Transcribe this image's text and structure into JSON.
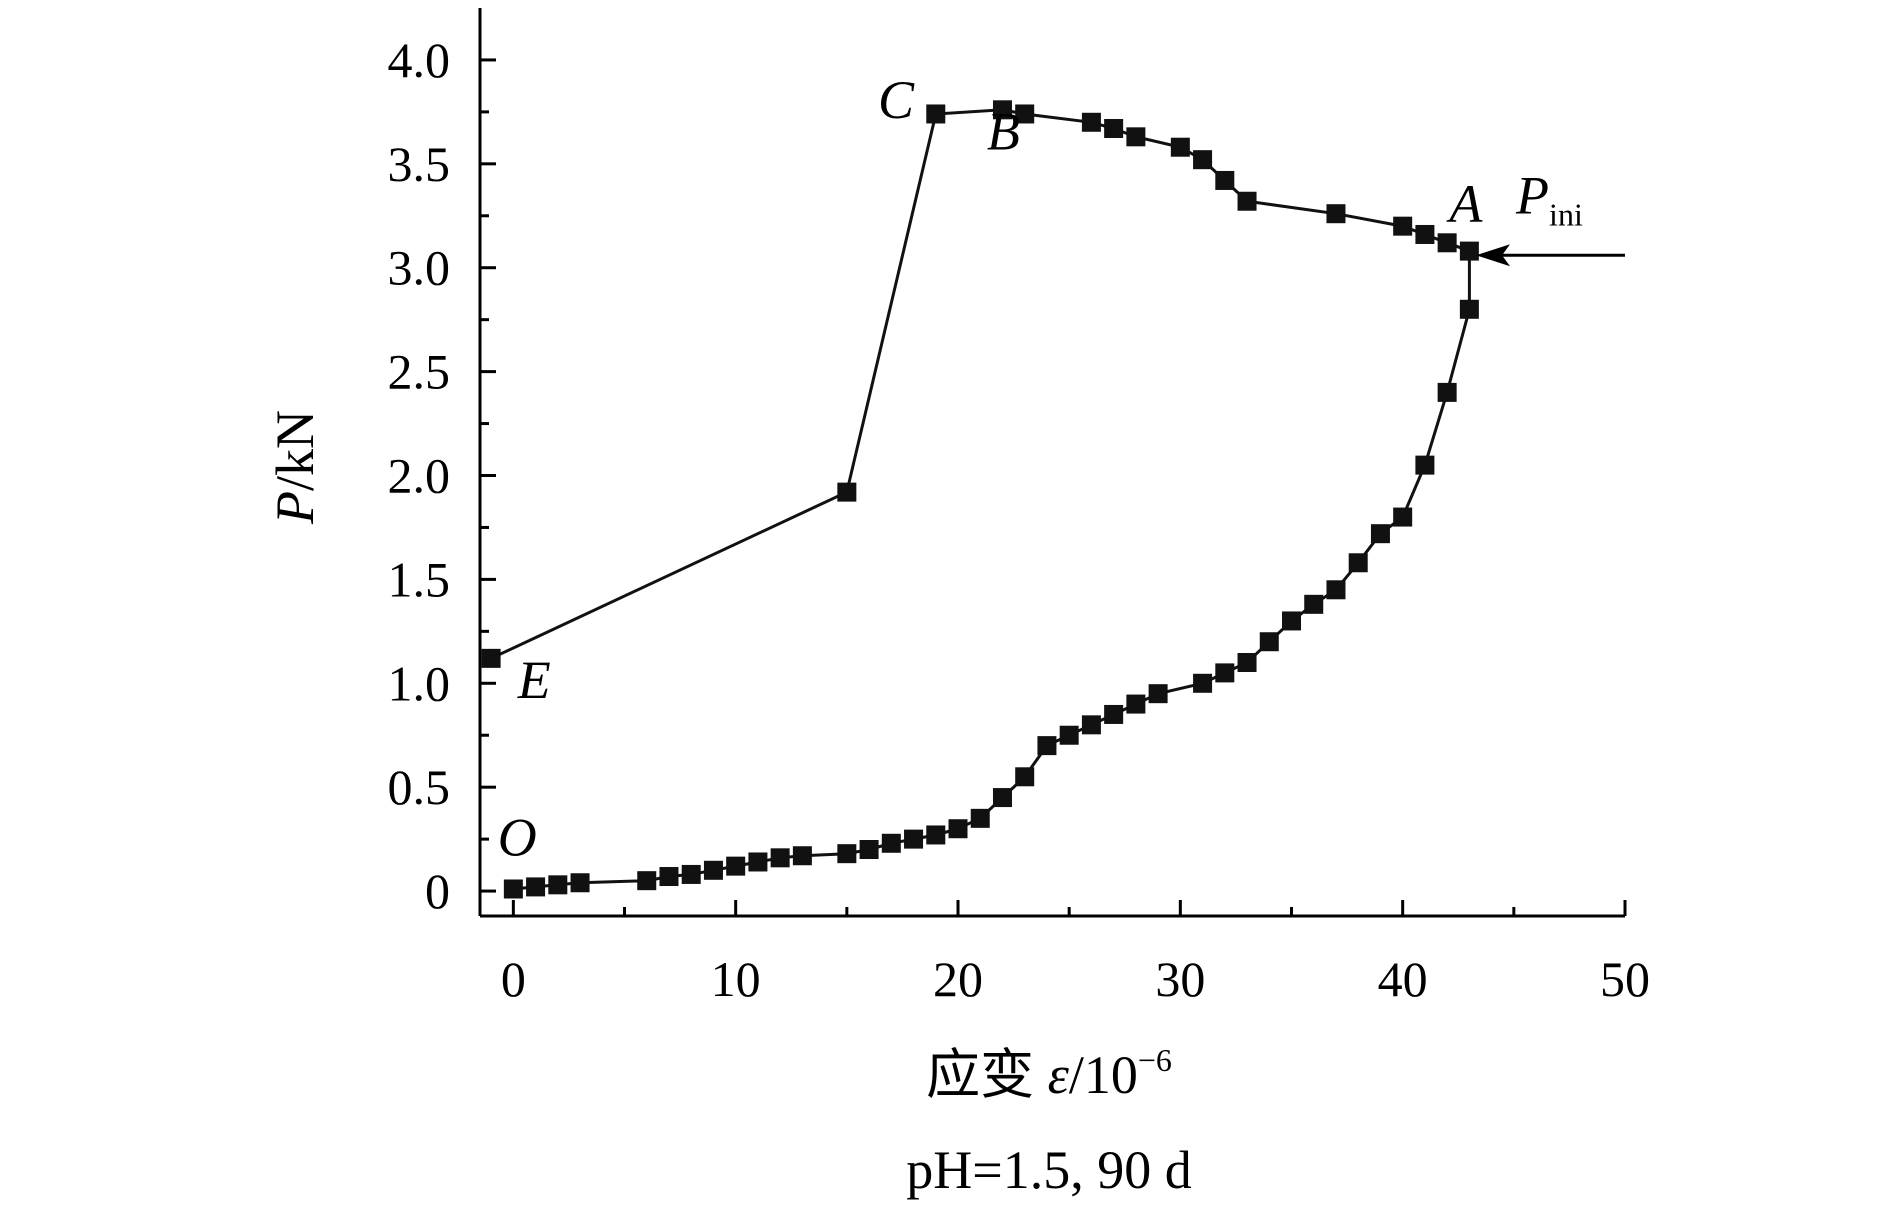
{
  "chart_data": {
    "type": "scatter",
    "xlabel_main": "应变 ",
    "xlabel_var": "ε",
    "xlabel_unit": "/10",
    "xlabel_exp": "−6",
    "ylabel_var": "P",
    "ylabel_unit": "/kN",
    "caption": "pH=1.5, 90 d",
    "xlim": [
      -1.5,
      50
    ],
    "ylim": [
      -0.12,
      4.25
    ],
    "x_ticks": [
      0,
      10,
      20,
      30,
      40,
      50
    ],
    "x_tick_labels": [
      "0",
      "10",
      "20",
      "30",
      "40",
      "50"
    ],
    "y_ticks": [
      0,
      0.5,
      1.0,
      1.5,
      2.0,
      2.5,
      3.0,
      3.5,
      4.0
    ],
    "y_tick_labels": [
      "0",
      "0.5",
      "1.0",
      "1.5",
      "2.0",
      "2.5",
      "3.0",
      "3.5",
      "4.0"
    ],
    "grid": false,
    "series": [
      {
        "name": "",
        "points": [
          [
            0,
            0.01
          ],
          [
            1,
            0.02
          ],
          [
            2,
            0.03
          ],
          [
            3,
            0.04
          ],
          [
            6,
            0.05
          ],
          [
            7,
            0.07
          ],
          [
            8,
            0.08
          ],
          [
            9,
            0.1
          ],
          [
            10,
            0.12
          ],
          [
            11,
            0.14
          ],
          [
            12,
            0.16
          ],
          [
            13,
            0.17
          ],
          [
            15,
            0.18
          ],
          [
            16,
            0.2
          ],
          [
            17,
            0.23
          ],
          [
            18,
            0.25
          ],
          [
            19,
            0.27
          ],
          [
            20,
            0.3
          ],
          [
            21,
            0.35
          ],
          [
            22,
            0.45
          ],
          [
            23,
            0.55
          ],
          [
            24,
            0.7
          ],
          [
            25,
            0.75
          ],
          [
            26,
            0.8
          ],
          [
            27,
            0.85
          ],
          [
            28,
            0.9
          ],
          [
            29,
            0.95
          ],
          [
            31,
            1.0
          ],
          [
            32,
            1.05
          ],
          [
            33,
            1.1
          ],
          [
            34,
            1.2
          ],
          [
            35,
            1.3
          ],
          [
            36,
            1.38
          ],
          [
            37,
            1.45
          ],
          [
            38,
            1.58
          ],
          [
            39,
            1.72
          ],
          [
            40,
            1.8
          ],
          [
            41,
            2.05
          ],
          [
            42,
            2.4
          ],
          [
            43,
            2.8
          ],
          [
            43,
            3.08
          ],
          [
            42,
            3.12
          ],
          [
            41,
            3.16
          ],
          [
            40,
            3.2
          ],
          [
            37,
            3.26
          ],
          [
            33,
            3.32
          ],
          [
            32,
            3.42
          ],
          [
            31,
            3.52
          ],
          [
            30,
            3.58
          ],
          [
            28,
            3.63
          ],
          [
            27,
            3.67
          ],
          [
            26,
            3.7
          ],
          [
            23,
            3.74
          ],
          [
            22,
            3.76
          ],
          [
            19,
            3.74
          ],
          [
            15,
            1.92
          ],
          [
            -1,
            1.12
          ]
        ]
      }
    ],
    "annotations": [
      {
        "text": "O",
        "x": -0.7,
        "y": 0.17
      },
      {
        "text": "E",
        "x": 0.2,
        "y": 0.93
      },
      {
        "text": "C",
        "x": 16.4,
        "y": 3.72
      },
      {
        "text": "B",
        "x": 21.3,
        "y": 3.57
      },
      {
        "text": "A",
        "x": 42.1,
        "y": 3.22
      },
      {
        "text": "P",
        "x": 45.1,
        "y": 3.26
      }
    ],
    "annotation_subscript": "ini",
    "arrow": {
      "from": [
        50,
        3.06
      ],
      "to": [
        43.3,
        3.06
      ]
    }
  }
}
